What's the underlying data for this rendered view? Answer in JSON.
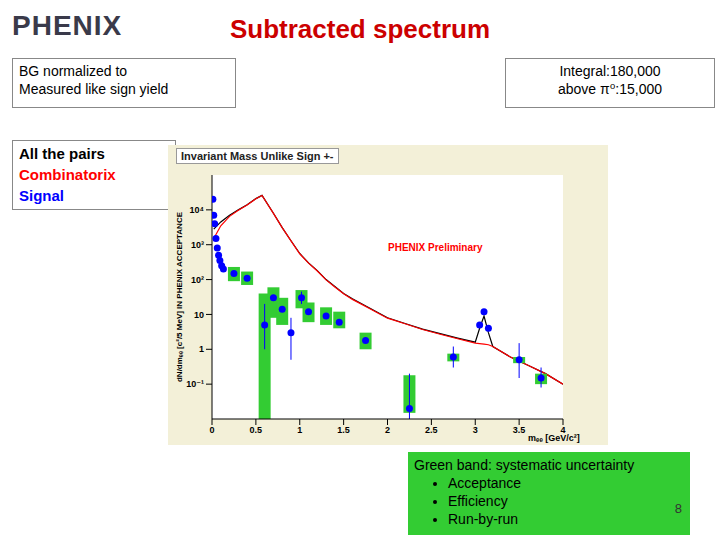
{
  "header": {
    "logo": "PHENIX",
    "title": "Subtracted spectrum",
    "left_note": [
      "BG normalized to",
      "Measured like sign yield"
    ],
    "right_note": [
      "Integral:180,000",
      "above π⁰:15,000"
    ]
  },
  "chart_data": {
    "type": "line",
    "title": "Invariant Mass Unlike Sign +-",
    "x_label": "mₑₑ [GeV/c²]",
    "y_label": "dN/dmₑₑ [c²/5 MeV] IN PHENIX ACCEPTANCE",
    "annotations": [
      "PHENIX Preliminary"
    ],
    "log": "y",
    "grid": false,
    "xlim": [
      0,
      4
    ],
    "xticks": [
      0,
      0.5,
      1,
      1.5,
      2,
      2.5,
      3,
      3.5,
      4
    ],
    "ylim": [
      0.01,
      100000
    ],
    "yticks": [
      {
        "value": 0.1,
        "label": "10⁻¹"
      },
      1,
      10,
      {
        "value": 100,
        "label": "10²"
      },
      {
        "value": 1000,
        "label": "10³"
      },
      {
        "value": 10000,
        "label": "10⁴"
      }
    ],
    "series": [
      {
        "name": "All the pairs",
        "color": "#000000",
        "type": "line",
        "x": [
          0.02,
          0.1,
          0.2,
          0.3,
          0.4,
          0.5,
          0.57,
          0.7,
          0.8,
          0.9,
          1.0,
          1.1,
          1.2,
          1.3,
          1.4,
          1.5,
          1.6,
          1.8,
          2.0,
          2.2,
          2.4,
          2.6,
          2.8,
          3.0,
          3.05,
          3.1,
          3.15,
          3.2,
          3.4,
          3.6,
          3.8,
          4.0
        ],
        "values": [
          2800,
          4500,
          7000,
          10000,
          14000,
          21000,
          26000,
          8000,
          3100,
          1300,
          560,
          300,
          180,
          100,
          63,
          40,
          28,
          15,
          8,
          5.5,
          3.8,
          2.8,
          2.1,
          1.6,
          4,
          9,
          3,
          1.2,
          0.6,
          0.35,
          0.2,
          0.1
        ]
      },
      {
        "name": "Combinatorix",
        "color": "#ff0000",
        "type": "line",
        "x": [
          0.02,
          0.1,
          0.2,
          0.3,
          0.4,
          0.5,
          0.57,
          0.7,
          0.8,
          0.9,
          1.0,
          1.1,
          1.2,
          1.3,
          1.4,
          1.5,
          1.6,
          1.8,
          2.0,
          2.2,
          2.4,
          2.6,
          2.8,
          3.0,
          3.05,
          3.1,
          3.15,
          3.2,
          3.4,
          3.6,
          3.8,
          4.0
        ],
        "values": [
          1500,
          3500,
          6500,
          9800,
          13800,
          20800,
          25800,
          7950,
          3080,
          1290,
          550,
          295,
          176,
          98,
          61,
          39,
          27,
          14.5,
          7.8,
          5.4,
          3.7,
          2.7,
          2.0,
          1.5,
          1.45,
          1.4,
          1.35,
          1.2,
          0.6,
          0.35,
          0.2,
          0.1
        ]
      },
      {
        "name": "Signal",
        "color": "#0000ff",
        "type": "scatter",
        "marker": "circle",
        "x": [
          0.01,
          0.02,
          0.03,
          0.045,
          0.06,
          0.075,
          0.09,
          0.11,
          0.13,
          0.25,
          0.4,
          0.6,
          0.7,
          0.8,
          0.9,
          1.02,
          1.1,
          1.3,
          1.45,
          1.75,
          2.25,
          2.75,
          3.05,
          3.1,
          3.15,
          3.5,
          3.75
        ],
        "values": [
          20000,
          7000,
          4000,
          1500,
          800,
          500,
          350,
          250,
          200,
          150,
          110,
          5,
          30,
          14,
          3,
          30,
          12,
          9,
          6,
          1.8,
          0.02,
          0.6,
          5,
          12,
          4,
          0.5,
          0.15
        ],
        "err_low": [
          null,
          null,
          null,
          null,
          null,
          null,
          null,
          null,
          null,
          null,
          null,
          1,
          null,
          null,
          0.5,
          20,
          null,
          null,
          null,
          null,
          0.01,
          0.3,
          null,
          null,
          null,
          0.15,
          0.08
        ],
        "err_high": [
          null,
          null,
          null,
          null,
          null,
          null,
          null,
          null,
          null,
          null,
          null,
          20,
          null,
          null,
          8,
          45,
          null,
          null,
          null,
          null,
          0.2,
          1.2,
          null,
          null,
          null,
          1.5,
          0.3
        ],
        "sys_low": [
          null,
          null,
          null,
          null,
          null,
          null,
          null,
          null,
          null,
          90,
          70,
          0.01,
          8,
          5,
          null,
          15,
          6,
          5,
          4,
          1,
          0.015,
          0.45,
          null,
          null,
          null,
          0.4,
          0.1
        ],
        "sys_high": [
          null,
          null,
          null,
          null,
          null,
          null,
          null,
          null,
          null,
          230,
          170,
          40,
          60,
          30,
          null,
          50,
          22,
          16,
          12,
          3,
          0.18,
          0.75,
          null,
          null,
          null,
          0.6,
          0.2
        ]
      }
    ]
  },
  "note": {
    "title": "Green band: systematic uncertainty",
    "items": [
      "Acceptance",
      "Efficiency",
      "Run-by-run"
    ]
  },
  "page_number": 8
}
